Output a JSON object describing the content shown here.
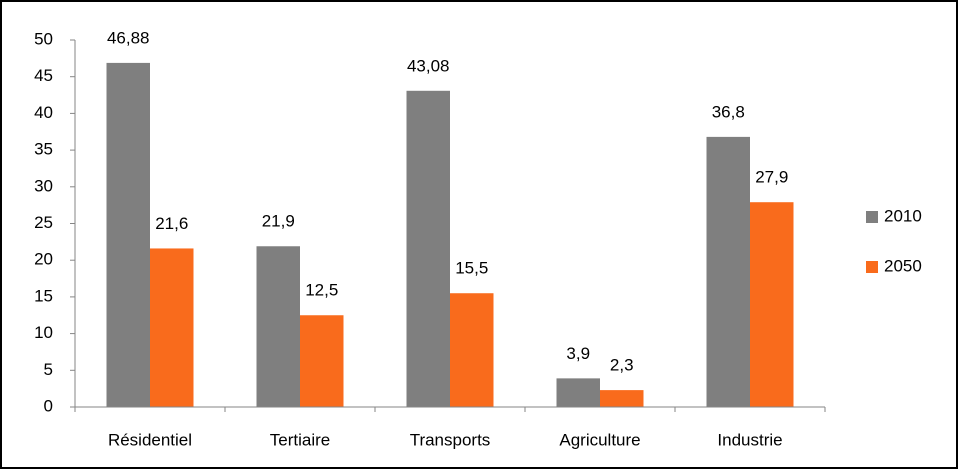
{
  "chart_data": {
    "type": "bar",
    "categories": [
      "Résidentiel",
      "Tertiaire",
      "Transports",
      "Agriculture",
      "Industrie"
    ],
    "series": [
      {
        "name": "2010",
        "color": "#7f7f7f",
        "values": [
          46.88,
          21.9,
          43.08,
          3.9,
          36.8
        ],
        "value_labels": [
          "46,88",
          "21,9",
          "43,08",
          "3,9",
          "36,8"
        ]
      },
      {
        "name": "2050",
        "color": "#f96b1c",
        "values": [
          21.6,
          12.5,
          15.5,
          2.3,
          27.9
        ],
        "value_labels": [
          "21,6",
          "12,5",
          "15,5",
          "2,3",
          "27,9"
        ]
      }
    ],
    "ylim": [
      0,
      50
    ],
    "yticks": [
      0,
      5,
      10,
      15,
      20,
      25,
      30,
      35,
      40,
      45,
      50
    ],
    "grid": false,
    "legend": "right"
  }
}
